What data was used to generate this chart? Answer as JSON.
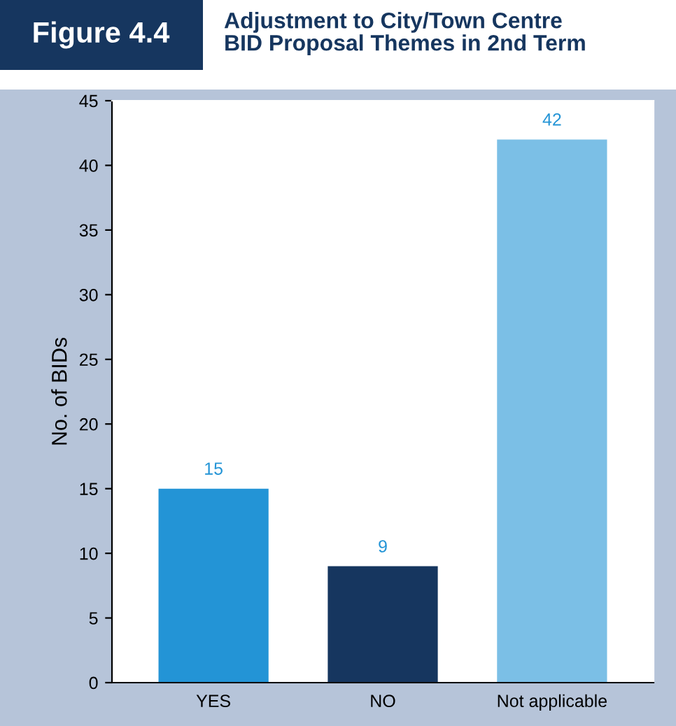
{
  "chart_data": {
    "type": "bar",
    "title": "Adjustment to City/Town Centre\nBID Proposal Themes in 2nd Term",
    "annotations": [
      "Figure 4.4"
    ],
    "ylabel": "No. of BIDs",
    "categories": [
      "YES",
      "NO",
      "Not applicable"
    ],
    "values": [
      15,
      9,
      42
    ],
    "colors": [
      "#2394d6",
      "#16365f",
      "#7bbfe6"
    ],
    "ylim": [
      0,
      45
    ],
    "yticks": [
      0,
      5,
      10,
      15,
      20,
      25,
      30,
      35,
      40,
      45
    ],
    "data_labels": true,
    "grid": false,
    "legend": false
  }
}
